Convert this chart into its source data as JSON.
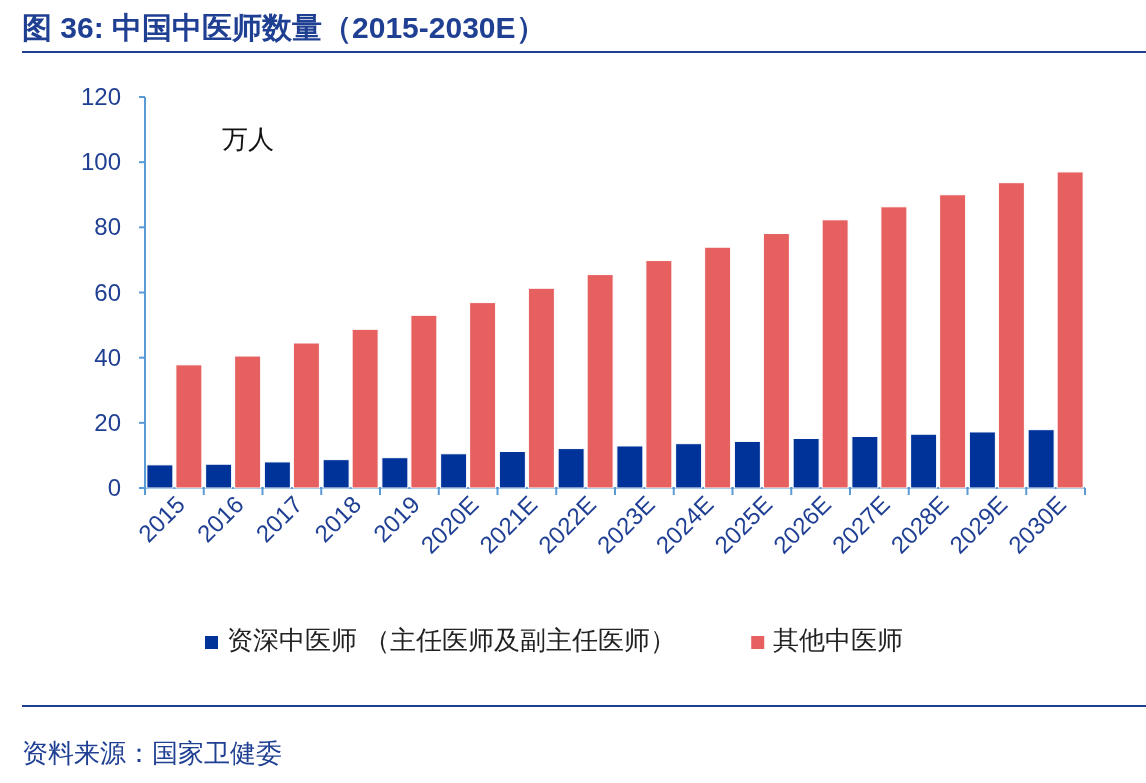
{
  "chart_data": {
    "type": "bar",
    "title": "图 36: 中国中医师数量（2015-2030E）",
    "ylabel": "万人",
    "annotations": [
      "资料来源：国家卫健委"
    ],
    "categories": [
      "2015",
      "2016",
      "2017",
      "2018",
      "2019",
      "2020E",
      "2021E",
      "2022E",
      "2023E",
      "2024E",
      "2025E",
      "2026E",
      "2027E",
      "2028E",
      "2029E",
      "2030E"
    ],
    "series": [
      {
        "name": "资深中医师 （主任医师及副主任医师）",
        "color": "#003399",
        "values": [
          7.1,
          7.3,
          8.0,
          8.7,
          9.3,
          10.5,
          11.2,
          12.1,
          12.9,
          13.6,
          14.3,
          15.2,
          15.8,
          16.5,
          17.2,
          17.9
        ]
      },
      {
        "name": "其他中医师",
        "color": "#e66060",
        "values": [
          37.8,
          40.5,
          44.5,
          48.7,
          53.0,
          56.9,
          61.3,
          65.5,
          69.8,
          73.9,
          78.1,
          82.3,
          86.3,
          90.0,
          93.7,
          97.0
        ]
      }
    ],
    "ylim": [
      0,
      120
    ],
    "yticks": [
      0,
      20,
      40,
      60,
      80,
      100,
      120
    ],
    "legend": "bottom"
  }
}
